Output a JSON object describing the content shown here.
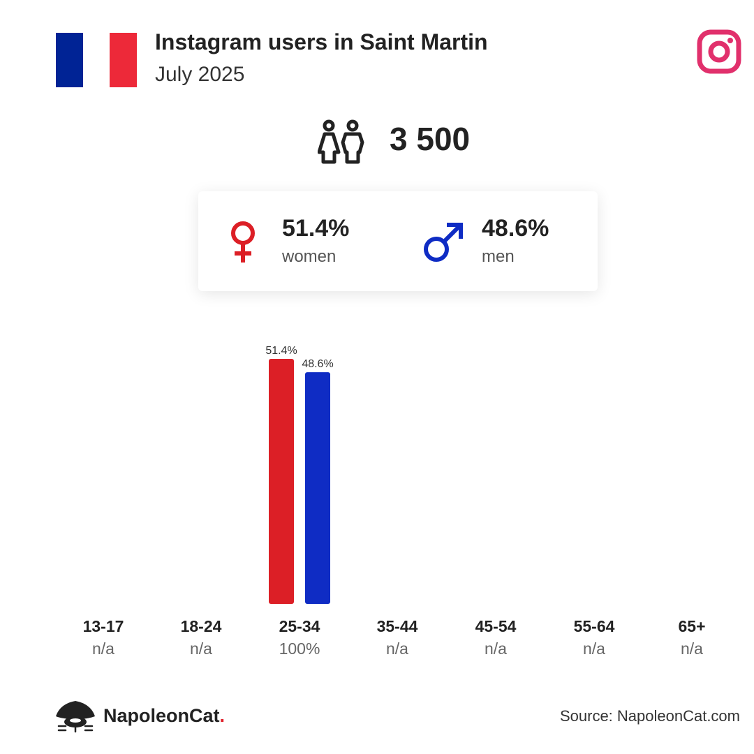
{
  "header": {
    "title": "Instagram users in Saint Martin",
    "subtitle": "July 2025",
    "flag_colors": [
      "#002395",
      "#ffffff",
      "#ed2939"
    ],
    "flag_icon": "france-flag-icon",
    "platform_icon": "instagram-icon"
  },
  "total": {
    "icon": "users-icon",
    "value": "3 500"
  },
  "gender": {
    "women": {
      "icon": "female-symbol-icon",
      "value": "51.4%",
      "label": "women",
      "color": "#dc1f26"
    },
    "men": {
      "icon": "male-symbol-icon",
      "value": "48.6%",
      "label": "men",
      "color": "#0f2cc4"
    }
  },
  "chart_data": {
    "type": "bar",
    "categories": [
      "13-17",
      "18-24",
      "25-34",
      "35-44",
      "45-54",
      "55-64",
      "65+"
    ],
    "category_totals": [
      "n/a",
      "n/a",
      "100%",
      "n/a",
      "n/a",
      "n/a",
      "n/a"
    ],
    "series": [
      {
        "name": "women",
        "color": "#dc1f26",
        "values": [
          null,
          null,
          51.4,
          null,
          null,
          null,
          null
        ],
        "labels": [
          null,
          null,
          "51.4%",
          null,
          null,
          null,
          null
        ]
      },
      {
        "name": "men",
        "color": "#0f2cc4",
        "values": [
          null,
          null,
          48.6,
          null,
          null,
          null,
          null
        ],
        "labels": [
          null,
          null,
          "48.6%",
          null,
          null,
          null,
          null
        ]
      }
    ],
    "ylim": [
      0,
      51.4
    ]
  },
  "footer": {
    "brand": "NapoleonCat",
    "brand_dot": ".",
    "logo_icon": "napoleoncat-logo-icon",
    "source": "Source: NapoleonCat.com"
  }
}
